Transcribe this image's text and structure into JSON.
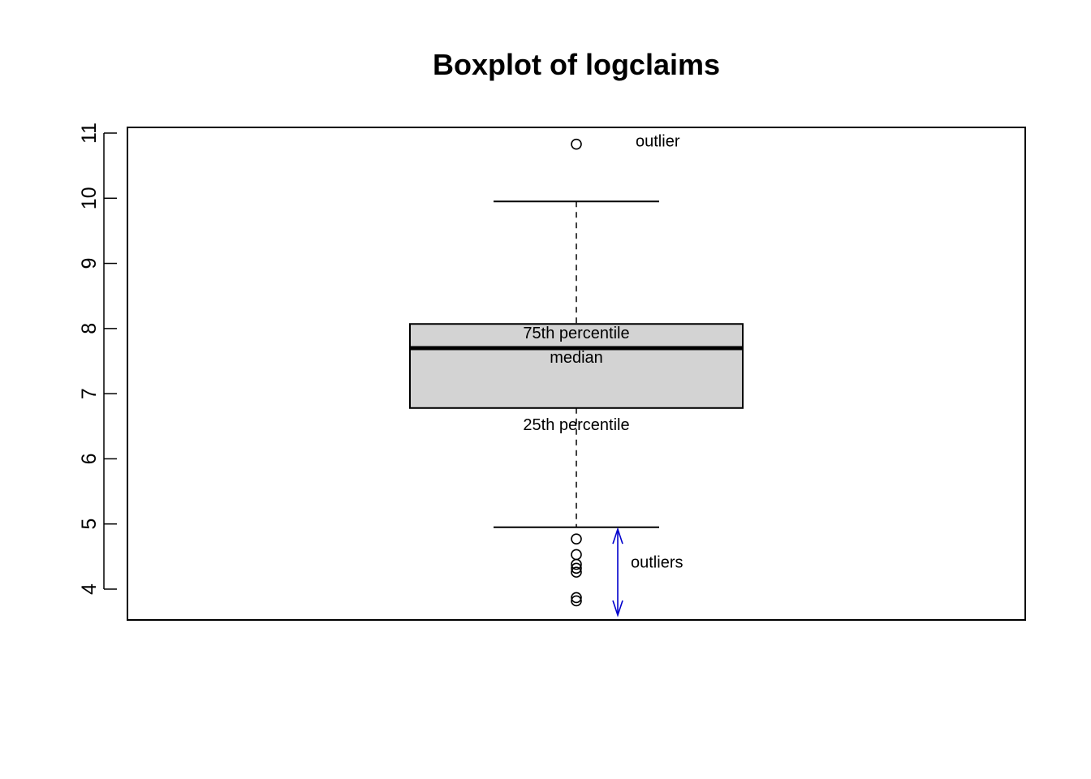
{
  "chart_data": {
    "type": "boxplot",
    "title": "Boxplot of logclaims",
    "xlabel": "",
    "ylabel": "",
    "ylim": [
      3.55,
      11.1
    ],
    "y_ticks": [
      4,
      5,
      6,
      7,
      8,
      9,
      10,
      11
    ],
    "y_tick_labels": [
      "4",
      "5",
      "6",
      "7",
      "8",
      "9",
      "10",
      "11"
    ],
    "box": {
      "whisker_low": 4.95,
      "q1": 6.78,
      "median": 7.7,
      "q3": 8.07,
      "whisker_high": 9.95
    },
    "outliers": [
      10.83,
      4.77,
      4.53,
      4.38,
      4.32,
      4.26,
      3.87,
      3.82
    ],
    "annotations": {
      "outlier_high": "outlier",
      "q3": "75th percentile",
      "median": "median",
      "q1": "25th percentile",
      "outliers_low": "outliers"
    },
    "arrow": {
      "from": 4.92,
      "to": 3.6,
      "color": "#0000cc"
    },
    "grid": false,
    "legend": "none"
  }
}
